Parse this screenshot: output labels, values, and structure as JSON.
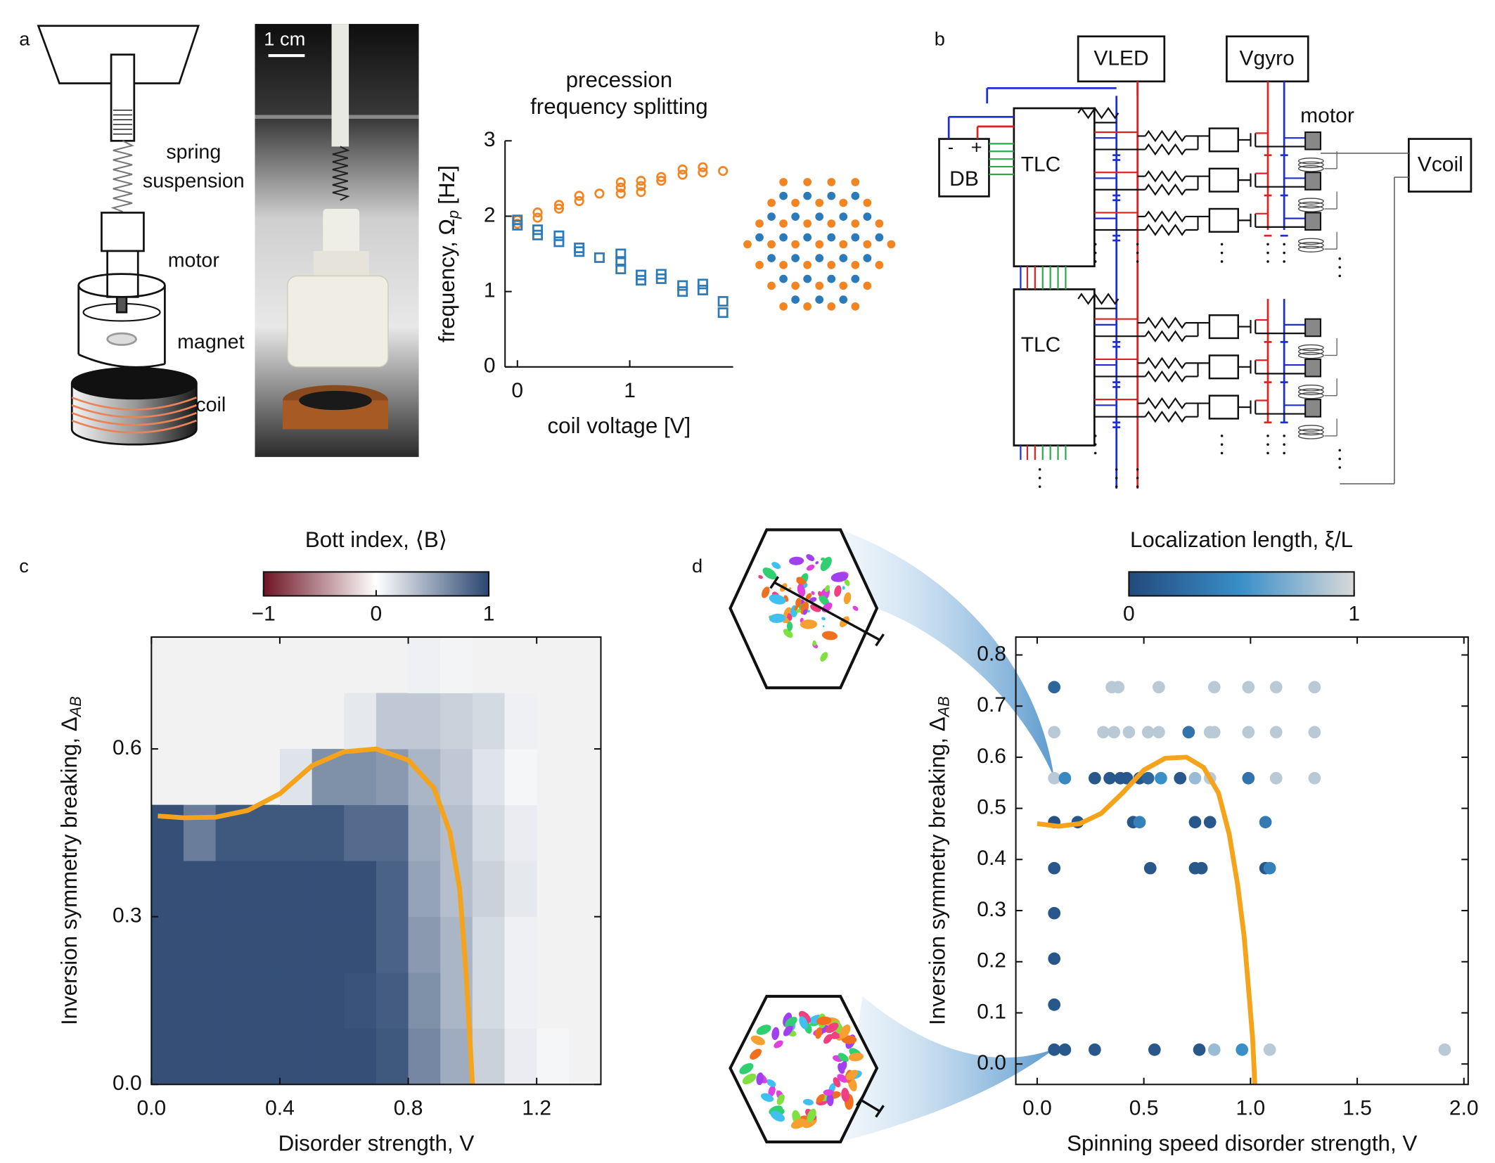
{
  "panel_labels": [
    "a",
    "b",
    "c",
    "d"
  ],
  "schematic": {
    "labels": [
      "spring",
      "suspension",
      "motor",
      "magnet",
      "coil"
    ],
    "scale_bar": "1 cm"
  },
  "circuit": {
    "vled": "VLED",
    "vgyro": "Vgyro",
    "motor": "motor",
    "vcoil": "Vcoil",
    "db": "DB",
    "minus": "-",
    "plus": "+",
    "tlc": [
      "TLC",
      "TLC"
    ]
  },
  "chart_data": [
    {
      "type": "scatter",
      "title": [
        "precession",
        "frequency splitting"
      ],
      "xlabel": "coil voltage [V]",
      "ylabel": "frequency, Ω",
      "ylabel_sub": "p",
      "ylabel_unit": "[Hz]",
      "xlim": [
        -0.11,
        1.92
      ],
      "ylim": [
        0,
        3
      ],
      "xticks": [
        0,
        1
      ],
      "yticks": [
        0,
        1,
        2,
        3
      ],
      "frame": "open",
      "series": [
        {
          "color": "#f28522",
          "marker": "circle",
          "mode": "markers",
          "x": [
            0,
            0,
            0.18,
            0.18,
            0.37,
            0.37,
            0.55,
            0.55,
            0.73,
            0.92,
            0.92,
            0.92,
            1.1,
            1.1,
            1.1,
            1.28,
            1.28,
            1.47,
            1.47,
            1.65,
            1.65,
            1.83
          ],
          "values": [
            1.9,
            1.95,
            1.98,
            2.05,
            2.1,
            2.15,
            2.2,
            2.27,
            2.3,
            2.3,
            2.38,
            2.45,
            2.32,
            2.4,
            2.47,
            2.47,
            2.52,
            2.55,
            2.62,
            2.58,
            2.65,
            2.6
          ]
        },
        {
          "color": "#2b7bba",
          "marker": "square",
          "mode": "markers",
          "x": [
            0,
            0,
            0.18,
            0.18,
            0.37,
            0.37,
            0.55,
            0.55,
            0.73,
            0.92,
            0.92,
            0.92,
            1.1,
            1.1,
            1.28,
            1.28,
            1.47,
            1.47,
            1.65,
            1.65,
            1.83,
            1.83
          ],
          "values": [
            1.88,
            1.95,
            1.75,
            1.82,
            1.66,
            1.74,
            1.53,
            1.58,
            1.45,
            1.3,
            1.4,
            1.5,
            1.15,
            1.22,
            1.17,
            1.23,
            1.0,
            1.08,
            1.02,
            1.1,
            0.72,
            0.87
          ]
        }
      ]
    },
    {
      "type": "heatmap",
      "xlabel": "Disorder strength, V",
      "ylabel": "Inversion symmetry breaking, Δ",
      "ylabel_sub": "AB",
      "xlim": [
        0,
        1.4
      ],
      "ylim": [
        0,
        0.8
      ],
      "xticks": [
        {
          "value": 0,
          "label": "0.0"
        },
        0.4,
        0.8,
        1.2
      ],
      "yticks": [
        {
          "value": 0,
          "label": "0.0"
        },
        0.3,
        0.6
      ],
      "frame": "box",
      "xbins": [
        0,
        0.1,
        0.2,
        0.3,
        0.4,
        0.5,
        0.6,
        0.7,
        0.8,
        0.9,
        1,
        1.1,
        1.2,
        1.3,
        1.4
      ],
      "ybins": [
        0,
        0.1,
        0.2,
        0.3,
        0.4,
        0.5,
        0.6,
        0.7,
        0.8
      ],
      "z": [
        [
          0.95,
          0.95,
          0.95,
          0.95,
          0.95,
          0.95,
          0.95,
          0.9,
          0.65,
          0.45,
          0.25,
          0.1,
          0.05,
          null
        ],
        [
          0.95,
          0.95,
          0.95,
          0.95,
          0.95,
          0.95,
          0.93,
          0.88,
          0.6,
          0.4,
          0.2,
          0.08,
          null,
          null
        ],
        [
          0.95,
          0.95,
          0.95,
          0.95,
          0.95,
          0.95,
          0.95,
          0.85,
          0.55,
          0.4,
          0.2,
          0.08,
          null,
          null
        ],
        [
          0.95,
          0.95,
          0.95,
          0.95,
          0.95,
          0.95,
          0.95,
          0.85,
          0.5,
          0.35,
          0.25,
          0.12,
          null,
          null
        ],
        [
          0.95,
          0.7,
          0.9,
          0.9,
          0.9,
          0.9,
          0.8,
          0.8,
          0.45,
          0.35,
          0.2,
          0.1,
          null,
          null
        ],
        [
          null,
          null,
          null,
          null,
          0.15,
          0.6,
          0.6,
          0.55,
          0.4,
          0.3,
          0.15,
          0.05,
          null,
          null
        ],
        [
          null,
          null,
          null,
          null,
          null,
          null,
          0.12,
          0.3,
          0.3,
          0.25,
          0.2,
          0.08,
          null,
          null
        ],
        [
          null,
          null,
          null,
          null,
          null,
          null,
          null,
          null,
          0.08,
          0.06,
          null,
          null,
          null,
          null
        ]
      ],
      "background": "#f2f2f2",
      "colormap": [
        "#6e1423",
        "#ffffff",
        "#2a4670"
      ],
      "zlim": [
        -1,
        1
      ],
      "colorbar": {
        "label": "Bott index, ⟨B⟩",
        "ticks": [
          {
            "value": -1,
            "label": "−1"
          },
          0,
          1
        ]
      },
      "series": [
        {
          "color": "#f5a31a",
          "mode": "line",
          "x": [
            0.02,
            0.1,
            0.2,
            0.3,
            0.4,
            0.5,
            0.6,
            0.7,
            0.8,
            0.88,
            0.93,
            0.96,
            0.98,
            0.99,
            1.0
          ],
          "values": [
            0.48,
            0.477,
            0.478,
            0.49,
            0.52,
            0.57,
            0.595,
            0.6,
            0.58,
            0.53,
            0.45,
            0.35,
            0.2,
            0.1,
            0.0
          ]
        }
      ]
    },
    {
      "type": "scatter",
      "xlabel": "Spinning speed disorder strength, V",
      "ylabel": "Inversion symmetry breaking, Δ",
      "ylabel_sub": "AB",
      "xlim": [
        -0.1,
        2.02
      ],
      "ylim": [
        -0.04,
        0.835
      ],
      "xticks": [
        {
          "value": 0,
          "label": "0.0"
        },
        0.5,
        {
          "value": 1,
          "label": "1.0"
        },
        1.5,
        {
          "value": 2,
          "label": "2.0"
        }
      ],
      "yticks": [
        {
          "value": 0,
          "label": "0.0"
        },
        0.1,
        0.2,
        0.3,
        0.4,
        0.5,
        0.6,
        0.7,
        0.8
      ],
      "frame": "box",
      "colormap": [
        "#234a7c",
        "#3a8fc9",
        "#d9d9d9"
      ],
      "zlim": [
        0,
        1
      ],
      "colorbar": {
        "label": "Localization length, ξ/L",
        "ticks": [
          0,
          1
        ]
      },
      "series": [
        {
          "mode": "markers",
          "marker": "disc",
          "x": [
            0.08,
            0.35,
            0.38,
            0.57,
            0.83,
            0.99,
            1.12,
            1.3,
            0.08,
            0.31,
            0.36,
            0.43,
            0.52,
            0.57,
            0.71,
            0.81,
            0.83,
            0.99,
            1.12,
            1.3,
            0.08,
            0.13,
            0.27,
            0.34,
            0.39,
            0.42,
            0.48,
            0.52,
            0.58,
            0.67,
            0.74,
            0.81,
            0.99,
            1.12,
            1.3,
            0.08,
            0.19,
            0.45,
            0.48,
            0.74,
            0.81,
            1.07,
            0.08,
            0.53,
            0.74,
            0.77,
            1.07,
            1.09,
            0.08,
            0.08,
            0.08,
            0.08,
            0.13,
            0.27,
            0.55,
            0.76,
            0.83,
            0.96,
            1.09,
            1.91
          ],
          "values": [
            0.737,
            0.737,
            0.737,
            0.737,
            0.737,
            0.737,
            0.737,
            0.737,
            0.649,
            0.649,
            0.649,
            0.649,
            0.649,
            0.649,
            0.649,
            0.649,
            0.649,
            0.649,
            0.649,
            0.649,
            0.559,
            0.559,
            0.559,
            0.559,
            0.559,
            0.559,
            0.559,
            0.559,
            0.559,
            0.559,
            0.559,
            0.559,
            0.559,
            0.559,
            0.559,
            0.473,
            0.473,
            0.473,
            0.473,
            0.473,
            0.473,
            0.473,
            0.383,
            0.383,
            0.383,
            0.383,
            0.383,
            0.383,
            0.295,
            0.206,
            0.116,
            0.028,
            0.028,
            0.028,
            0.028,
            0.028,
            0.028,
            0.028,
            0.028,
            0.028
          ],
          "z": [
            0.2,
            0.9,
            0.9,
            0.9,
            0.9,
            0.9,
            0.9,
            0.9,
            0.9,
            0.9,
            0.9,
            0.9,
            0.9,
            0.9,
            0.3,
            0.9,
            0.9,
            0.9,
            0.9,
            0.9,
            0.9,
            0.45,
            0.1,
            0.1,
            0.1,
            0.1,
            0.1,
            0.2,
            0.5,
            0.1,
            0.8,
            0.9,
            0.3,
            0.9,
            0.9,
            0.05,
            0.1,
            0.1,
            0.4,
            0.1,
            0.1,
            0.35,
            0.1,
            0.1,
            0.1,
            0.1,
            0.1,
            0.4,
            0.1,
            0.1,
            0.1,
            0.1,
            0.1,
            0.1,
            0.1,
            0.1,
            0.8,
            0.5,
            0.9,
            0.9
          ]
        },
        {
          "color": "#f5a31a",
          "mode": "line",
          "x": [
            0.0,
            0.1,
            0.2,
            0.3,
            0.4,
            0.5,
            0.6,
            0.7,
            0.78,
            0.85,
            0.9,
            0.94,
            0.97,
            0.99,
            1.01,
            1.02
          ],
          "values": [
            0.47,
            0.465,
            0.47,
            0.49,
            0.53,
            0.575,
            0.598,
            0.6,
            0.58,
            0.53,
            0.45,
            0.35,
            0.25,
            0.15,
            0.05,
            -0.04
          ]
        }
      ]
    }
  ]
}
